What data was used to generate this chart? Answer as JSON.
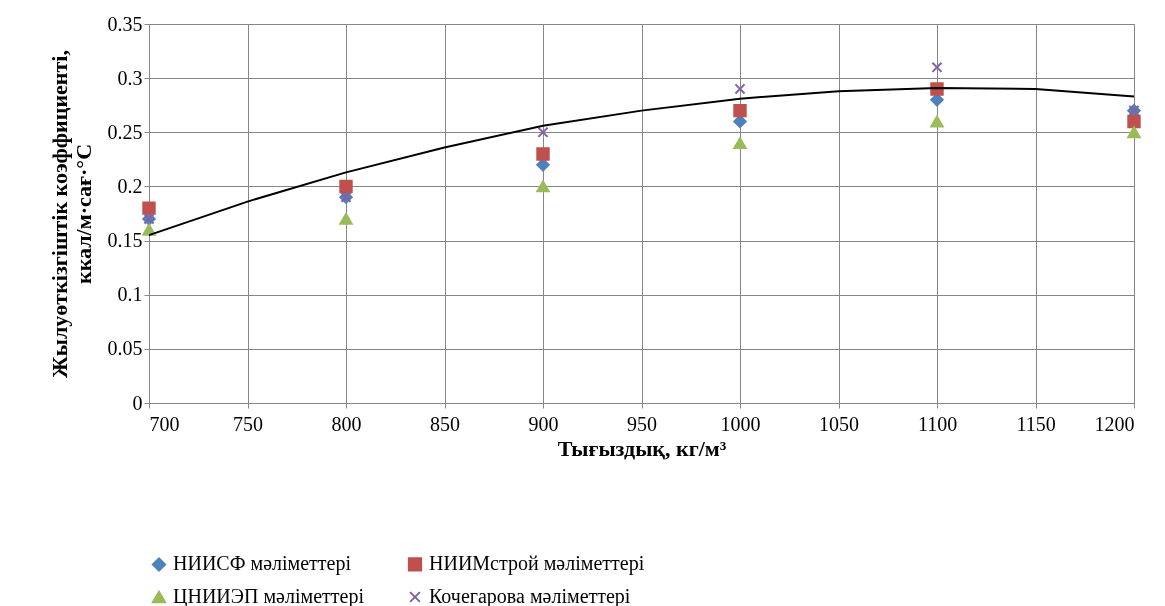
{
  "chart_data": {
    "type": "scatter",
    "xlabel": "Тығыздық, кг/м³",
    "ylabel": "Жылуөткізгіштік коэффициенті, ккал/м·сағ·°С",
    "x": [
      700,
      800,
      900,
      1000,
      1100,
      1200
    ],
    "series": [
      {
        "name": "НИИСФ мәліметтері",
        "color": "#4f81bd",
        "marker": "diamond",
        "values": [
          0.17,
          0.19,
          0.22,
          0.26,
          0.28,
          0.27
        ]
      },
      {
        "name": "НИИМстрой мәліметтері",
        "color": "#c0504d",
        "marker": "square",
        "values": [
          0.18,
          0.2,
          0.23,
          0.27,
          0.29,
          0.26
        ]
      },
      {
        "name": "ЦНИИЭП мәліметтері",
        "color": "#9bbb59",
        "marker": "triangle",
        "values": [
          0.16,
          0.17,
          0.2,
          0.24,
          0.26,
          0.25
        ]
      },
      {
        "name": "Кочегарова мәліметтері",
        "color": "#8064a2",
        "marker": "cross",
        "values": [
          0.17,
          0.19,
          0.25,
          0.29,
          0.31,
          0.27
        ]
      },
      {
        "type": "line",
        "color": "#000000",
        "marker": "none",
        "x": [
          700,
          750,
          800,
          850,
          900,
          950,
          1000,
          1050,
          1100,
          1150,
          1200
        ],
        "values": [
          0.155,
          0.186,
          0.213,
          0.236,
          0.256,
          0.27,
          0.281,
          0.288,
          0.291,
          0.29,
          0.283
        ]
      }
    ],
    "xlim": [
      700,
      1200
    ],
    "xticks": [
      700,
      750,
      800,
      850,
      900,
      950,
      1000,
      1050,
      1100,
      1150,
      1200
    ],
    "ylim": [
      0,
      0.35
    ],
    "yticks": [
      0,
      0.05,
      0.1,
      0.15,
      0.2,
      0.25,
      0.3,
      0.35
    ],
    "grid": true,
    "legend": "bottom"
  }
}
